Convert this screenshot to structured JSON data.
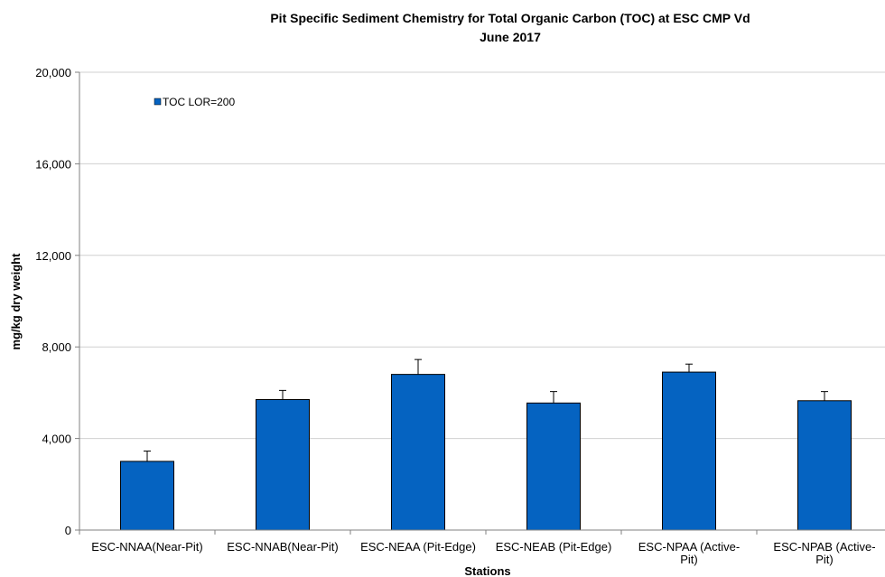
{
  "chart_data": {
    "type": "bar",
    "title_line1": "Pit Specific Sediment Chemistry for Total Organic Carbon (TOC) at  ESC CMP Vd",
    "title_line2": "June 2017",
    "xlabel": "Stations",
    "ylabel": "mg/kg dry weight",
    "ylim": [
      0,
      20000
    ],
    "yticks": [
      "0",
      "4,000",
      "8,000",
      "12,000",
      "16,000",
      "20,000"
    ],
    "ytick_values": [
      0,
      4000,
      8000,
      12000,
      16000,
      20000
    ],
    "grid": true,
    "legend_position": "top-left",
    "bar_color": "#0563C1",
    "categories": [
      [
        "ESC-NNAA(Near-Pit)"
      ],
      [
        "ESC-NNAB(Near-Pit)"
      ],
      [
        "ESC-NEAA (Pit-Edge)"
      ],
      [
        "ESC-NEAB (Pit-Edge)"
      ],
      [
        "ESC-NPAA (Active-",
        "Pit)"
      ],
      [
        "ESC-NPAB (Active-",
        "Pit)"
      ]
    ],
    "series": [
      {
        "name": "TOC LOR=200",
        "values": [
          3000,
          5700,
          6800,
          5550,
          6900,
          5650
        ],
        "error_upper": [
          450,
          400,
          650,
          500,
          350,
          400
        ]
      }
    ]
  }
}
